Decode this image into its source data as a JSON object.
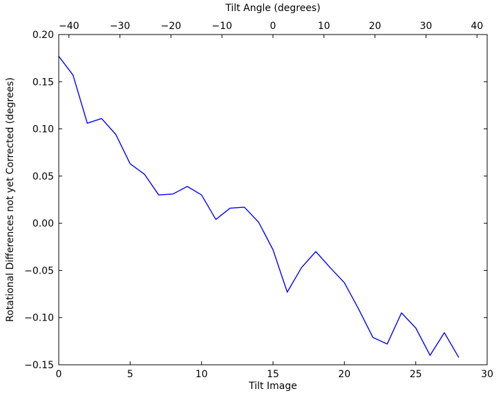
{
  "figure": {
    "background": "#ffffff",
    "frame_color": "#000000"
  },
  "chart_data": {
    "type": "line",
    "title": "",
    "top_xlabel": "Tilt Angle (degrees)",
    "xlabel": "Tilt Image",
    "ylabel": "Rotational Differences not yet Corrected (degrees)",
    "x": [
      0,
      1,
      2,
      3,
      4,
      5,
      6,
      7,
      8,
      9,
      10,
      11,
      12,
      13,
      14,
      15,
      16,
      17,
      18,
      19,
      20,
      21,
      22,
      23,
      24,
      25,
      26,
      27,
      28
    ],
    "values": [
      0.177,
      0.157,
      0.106,
      0.111,
      0.094,
      0.063,
      0.052,
      0.03,
      0.031,
      0.039,
      0.03,
      0.004,
      0.016,
      0.017,
      0.001,
      -0.028,
      -0.073,
      -0.047,
      -0.03,
      -0.047,
      -0.063,
      -0.091,
      -0.121,
      -0.128,
      -0.095,
      -0.111,
      -0.14,
      -0.116,
      -0.142
    ],
    "series": [
      {
        "name": "rotational-differences",
        "color": "#0000ff"
      }
    ],
    "xlim": [
      0,
      30
    ],
    "ylim": [
      -0.15,
      0.2
    ],
    "top_xlim": [
      -42,
      42
    ],
    "x_ticks": {
      "values": [
        0,
        5,
        10,
        15,
        20,
        25,
        30
      ],
      "labels": [
        "0",
        "5",
        "10",
        "15",
        "20",
        "25",
        "30"
      ]
    },
    "y_ticks": {
      "values": [
        0.2,
        0.15,
        0.1,
        0.05,
        0.0,
        -0.05,
        -0.1,
        -0.15
      ],
      "labels": [
        "0.20",
        "0.15",
        "0.10",
        "0.05",
        "0.00",
        "−0.05",
        "−0.10",
        "−0.15"
      ]
    },
    "top_ticks": {
      "values": [
        -40,
        -30,
        -20,
        -10,
        0,
        10,
        20,
        30,
        40
      ],
      "labels": [
        "−40",
        "−30",
        "−20",
        "−10",
        "0",
        "10",
        "20",
        "30",
        "40"
      ]
    },
    "line_color": "#0000ff",
    "grid": false,
    "legend": null
  }
}
